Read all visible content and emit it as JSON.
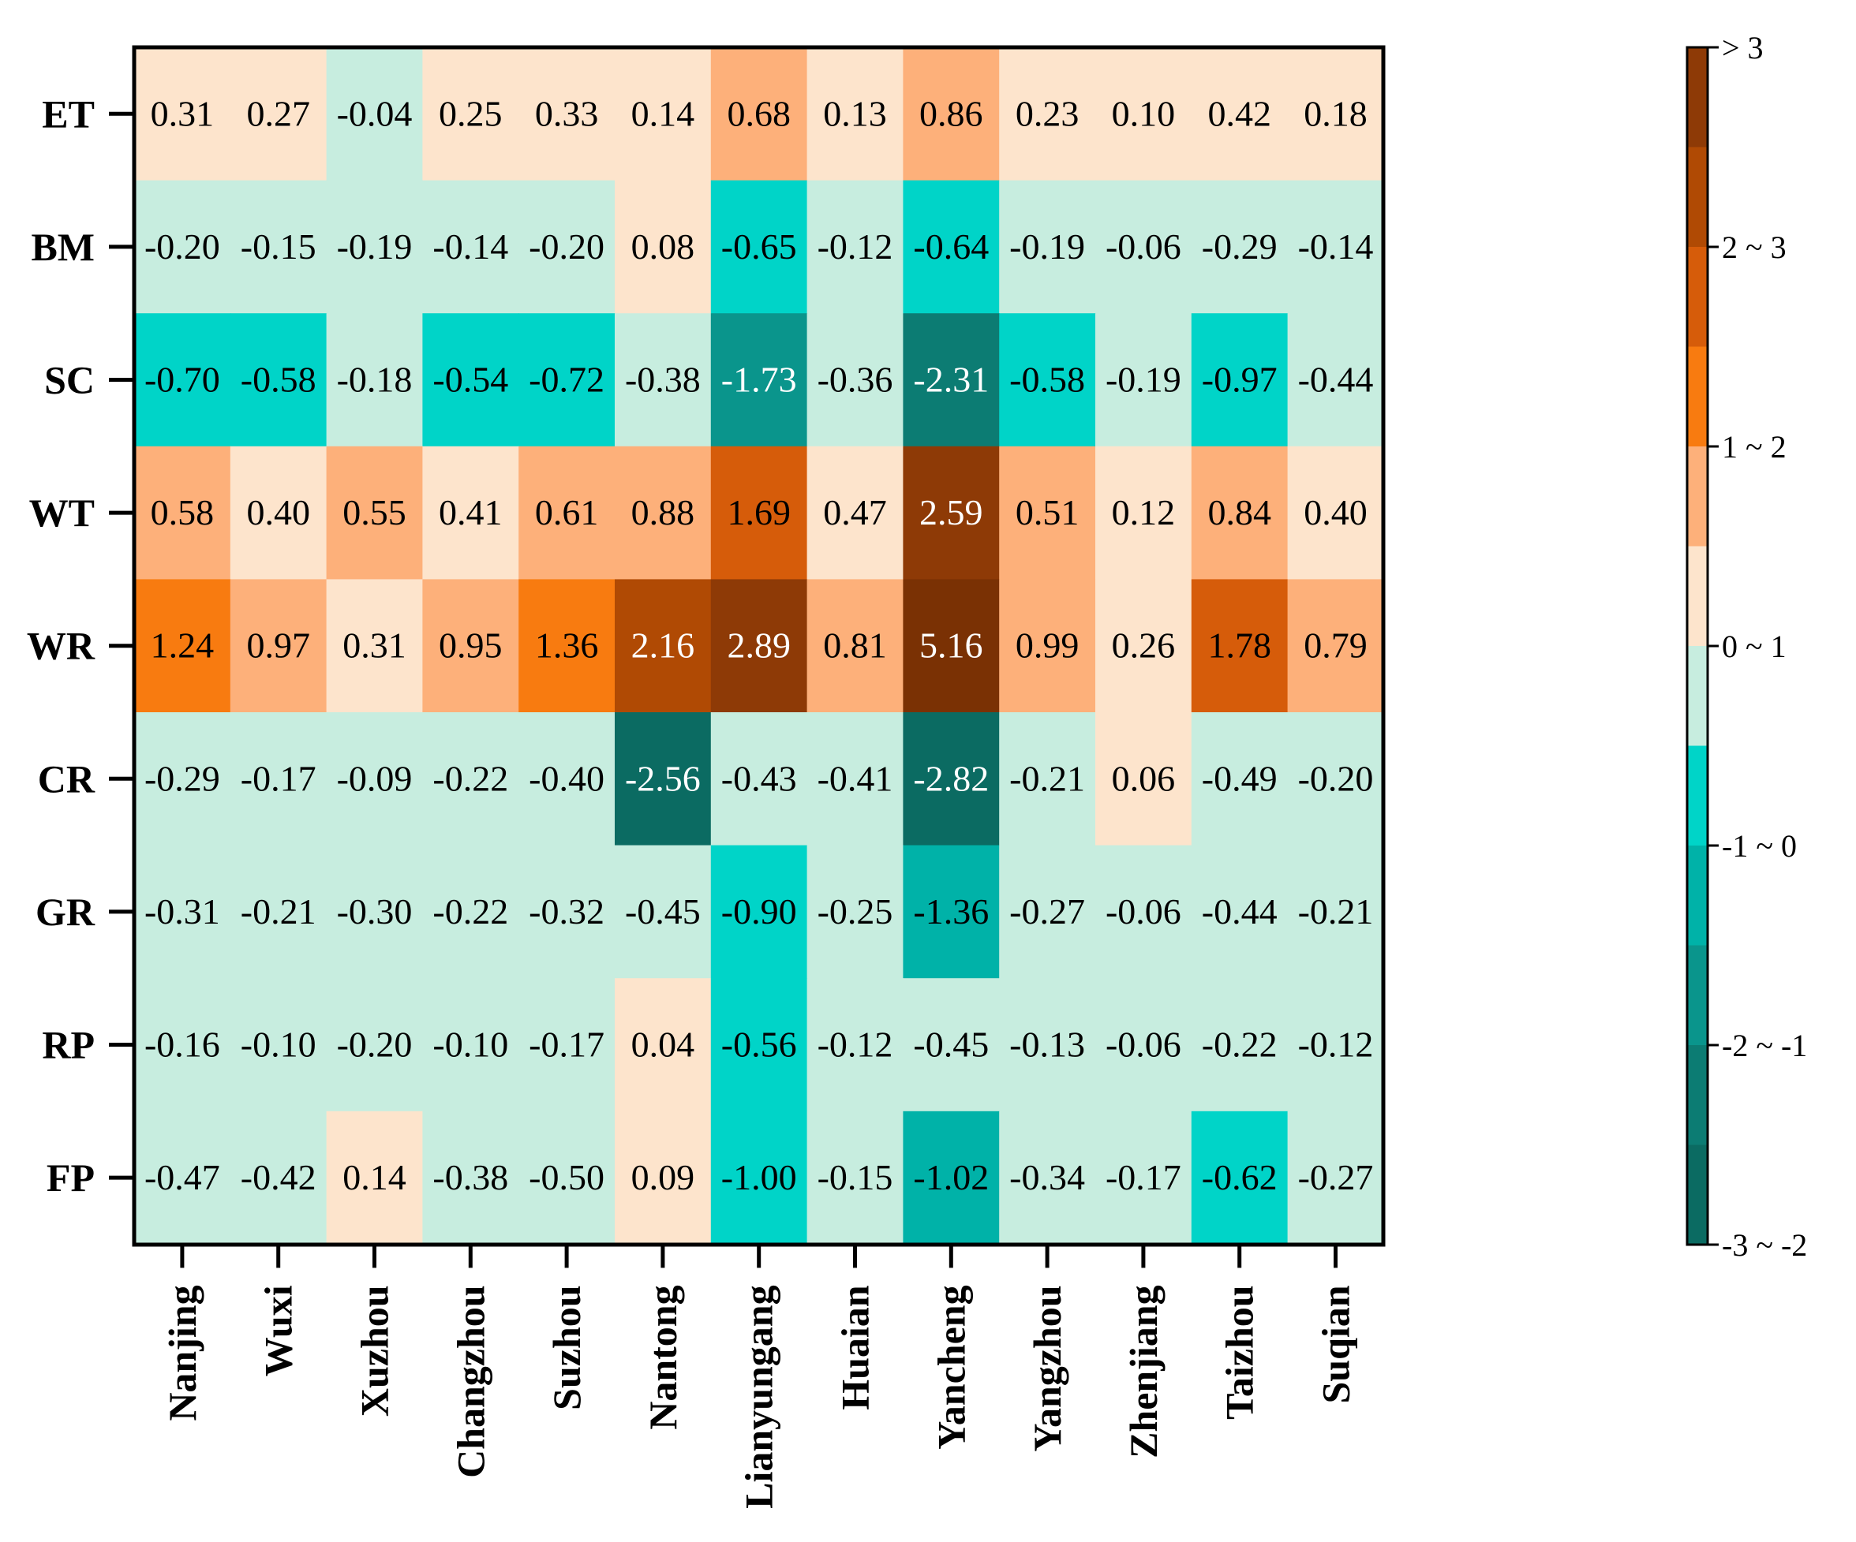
{
  "chart_data": {
    "type": "heatmap",
    "title": "",
    "xlabel": "",
    "ylabel": "",
    "rows": [
      "ET",
      "BM",
      "SC",
      "WT",
      "WR",
      "CR",
      "GR",
      "RP",
      "FP"
    ],
    "columns": [
      "Nanjing",
      "Wuxi",
      "Xuzhou",
      "Changzhou",
      "Suzhou",
      "Nantong",
      "Lianyungang",
      "Huaian",
      "Yancheng",
      "Yangzhou",
      "Zhenjiang",
      "Taizhou",
      "Suqian"
    ],
    "values": [
      [
        "0.31",
        "0.27",
        "-0.04",
        "0.25",
        "0.33",
        "0.14",
        "0.68",
        "0.13",
        "0.86",
        "0.23",
        "0.10",
        "0.42",
        "0.18"
      ],
      [
        "-0.20",
        "-0.15",
        "-0.19",
        "-0.14",
        "-0.20",
        "0.08",
        "-0.65",
        "-0.12",
        "-0.64",
        "-0.19",
        "-0.06",
        "-0.29",
        "-0.14"
      ],
      [
        "-0.70",
        "-0.58",
        "-0.18",
        "-0.54",
        "-0.72",
        "-0.38",
        "-1.73",
        "-0.36",
        "-2.31",
        "-0.58",
        "-0.19",
        "-0.97",
        "-0.44"
      ],
      [
        "0.58",
        "0.40",
        "0.55",
        "0.41",
        "0.61",
        "0.88",
        "1.69",
        "0.47",
        "2.59",
        "0.51",
        "0.12",
        "0.84",
        "0.40"
      ],
      [
        "1.24",
        "0.97",
        "0.31",
        "0.95",
        "1.36",
        "2.16",
        "2.89",
        "0.81",
        "5.16",
        "0.99",
        "0.26",
        "1.78",
        "0.79"
      ],
      [
        "-0.29",
        "-0.17",
        "-0.09",
        "-0.22",
        "-0.40",
        "-2.56",
        "-0.43",
        "-0.41",
        "-2.82",
        "-0.21",
        "0.06",
        "-0.49",
        "-0.20"
      ],
      [
        "-0.31",
        "-0.21",
        "-0.30",
        "-0.22",
        "-0.32",
        "-0.45",
        "-0.90",
        "-0.25",
        "-1.36",
        "-0.27",
        "-0.06",
        "-0.44",
        "-0.21"
      ],
      [
        "-0.16",
        "-0.10",
        "-0.20",
        "-0.10",
        "-0.17",
        "0.04",
        "-0.56",
        "-0.12",
        "-0.45",
        "-0.13",
        "-0.06",
        "-0.22",
        "-0.12"
      ],
      [
        "-0.47",
        "-0.42",
        "0.14",
        "-0.38",
        "-0.50",
        "0.09",
        "-1.00",
        "-0.15",
        "-1.02",
        "-0.34",
        "-0.17",
        "-0.62",
        "-0.27"
      ]
    ],
    "color_scale": {
      "range": [
        -3,
        3
      ],
      "tick_values": [
        3,
        2,
        1,
        0,
        -1,
        -2,
        -3
      ],
      "labels": [
        "> 3",
        "2  ~ 3",
        "1  ~ 2",
        "0  ~ 1",
        "-1 ~ 0",
        "-2 ~ -1",
        "-3 ~ -2"
      ],
      "bands": [
        {
          "from": 2.5,
          "to": 3.0,
          "color": "#8e3a06"
        },
        {
          "from": 2.0,
          "to": 2.5,
          "color": "#b04a04"
        },
        {
          "from": 1.5,
          "to": 2.0,
          "color": "#d65c0a"
        },
        {
          "from": 1.0,
          "to": 1.5,
          "color": "#f87b10"
        },
        {
          "from": 0.5,
          "to": 1.0,
          "color": "#fdb07a"
        },
        {
          "from": 0.0,
          "to": 0.5,
          "color": "#fde4cc"
        },
        {
          "from": -0.5,
          "to": 0.0,
          "color": "#c7eddf"
        },
        {
          "from": -1.0,
          "to": -0.5,
          "color": "#00d4c8"
        },
        {
          "from": -1.5,
          "to": -1.0,
          "color": "#00b2a8"
        },
        {
          "from": -2.0,
          "to": -1.5,
          "color": "#0a958c"
        },
        {
          "from": -2.5,
          "to": -2.0,
          "color": "#0c7c73"
        },
        {
          "from": -3.0,
          "to": -2.5,
          "color": "#0b6b62"
        }
      ]
    },
    "cell_colors": {
      "top_band": "#7a3104",
      "light_text": "#ffffff",
      "dark_text": "#000000"
    }
  }
}
